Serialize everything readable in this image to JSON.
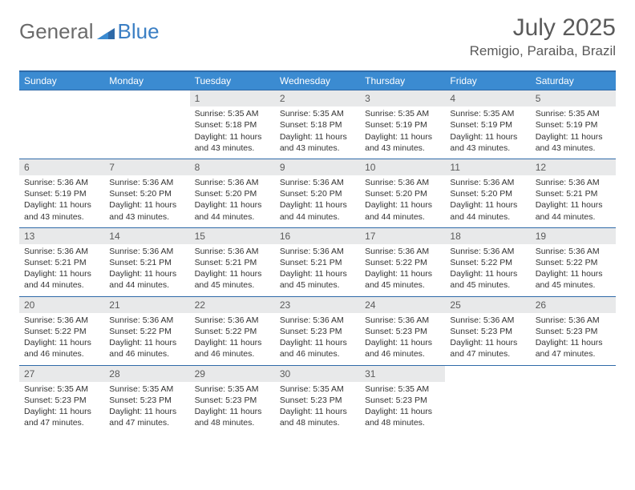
{
  "logo": {
    "text1": "General",
    "text2": "Blue"
  },
  "title": "July 2025",
  "location": "Remigio, Paraiba, Brazil",
  "weekdays": [
    "Sunday",
    "Monday",
    "Tuesday",
    "Wednesday",
    "Thursday",
    "Friday",
    "Saturday"
  ],
  "colors": {
    "header_bar": "#3b8bd1",
    "rule": "#2f6aa8",
    "daynum_bg": "#e8e9ea",
    "text": "#333333",
    "muted": "#5a5a5a",
    "logo_blue": "#3b7fc4"
  },
  "weeks": [
    [
      {
        "num": "",
        "sunrise": "",
        "sunset": "",
        "daylight": ""
      },
      {
        "num": "",
        "sunrise": "",
        "sunset": "",
        "daylight": ""
      },
      {
        "num": "1",
        "sunrise": "Sunrise: 5:35 AM",
        "sunset": "Sunset: 5:18 PM",
        "daylight": "Daylight: 11 hours and 43 minutes."
      },
      {
        "num": "2",
        "sunrise": "Sunrise: 5:35 AM",
        "sunset": "Sunset: 5:18 PM",
        "daylight": "Daylight: 11 hours and 43 minutes."
      },
      {
        "num": "3",
        "sunrise": "Sunrise: 5:35 AM",
        "sunset": "Sunset: 5:19 PM",
        "daylight": "Daylight: 11 hours and 43 minutes."
      },
      {
        "num": "4",
        "sunrise": "Sunrise: 5:35 AM",
        "sunset": "Sunset: 5:19 PM",
        "daylight": "Daylight: 11 hours and 43 minutes."
      },
      {
        "num": "5",
        "sunrise": "Sunrise: 5:35 AM",
        "sunset": "Sunset: 5:19 PM",
        "daylight": "Daylight: 11 hours and 43 minutes."
      }
    ],
    [
      {
        "num": "6",
        "sunrise": "Sunrise: 5:36 AM",
        "sunset": "Sunset: 5:19 PM",
        "daylight": "Daylight: 11 hours and 43 minutes."
      },
      {
        "num": "7",
        "sunrise": "Sunrise: 5:36 AM",
        "sunset": "Sunset: 5:20 PM",
        "daylight": "Daylight: 11 hours and 43 minutes."
      },
      {
        "num": "8",
        "sunrise": "Sunrise: 5:36 AM",
        "sunset": "Sunset: 5:20 PM",
        "daylight": "Daylight: 11 hours and 44 minutes."
      },
      {
        "num": "9",
        "sunrise": "Sunrise: 5:36 AM",
        "sunset": "Sunset: 5:20 PM",
        "daylight": "Daylight: 11 hours and 44 minutes."
      },
      {
        "num": "10",
        "sunrise": "Sunrise: 5:36 AM",
        "sunset": "Sunset: 5:20 PM",
        "daylight": "Daylight: 11 hours and 44 minutes."
      },
      {
        "num": "11",
        "sunrise": "Sunrise: 5:36 AM",
        "sunset": "Sunset: 5:20 PM",
        "daylight": "Daylight: 11 hours and 44 minutes."
      },
      {
        "num": "12",
        "sunrise": "Sunrise: 5:36 AM",
        "sunset": "Sunset: 5:21 PM",
        "daylight": "Daylight: 11 hours and 44 minutes."
      }
    ],
    [
      {
        "num": "13",
        "sunrise": "Sunrise: 5:36 AM",
        "sunset": "Sunset: 5:21 PM",
        "daylight": "Daylight: 11 hours and 44 minutes."
      },
      {
        "num": "14",
        "sunrise": "Sunrise: 5:36 AM",
        "sunset": "Sunset: 5:21 PM",
        "daylight": "Daylight: 11 hours and 44 minutes."
      },
      {
        "num": "15",
        "sunrise": "Sunrise: 5:36 AM",
        "sunset": "Sunset: 5:21 PM",
        "daylight": "Daylight: 11 hours and 45 minutes."
      },
      {
        "num": "16",
        "sunrise": "Sunrise: 5:36 AM",
        "sunset": "Sunset: 5:21 PM",
        "daylight": "Daylight: 11 hours and 45 minutes."
      },
      {
        "num": "17",
        "sunrise": "Sunrise: 5:36 AM",
        "sunset": "Sunset: 5:22 PM",
        "daylight": "Daylight: 11 hours and 45 minutes."
      },
      {
        "num": "18",
        "sunrise": "Sunrise: 5:36 AM",
        "sunset": "Sunset: 5:22 PM",
        "daylight": "Daylight: 11 hours and 45 minutes."
      },
      {
        "num": "19",
        "sunrise": "Sunrise: 5:36 AM",
        "sunset": "Sunset: 5:22 PM",
        "daylight": "Daylight: 11 hours and 45 minutes."
      }
    ],
    [
      {
        "num": "20",
        "sunrise": "Sunrise: 5:36 AM",
        "sunset": "Sunset: 5:22 PM",
        "daylight": "Daylight: 11 hours and 46 minutes."
      },
      {
        "num": "21",
        "sunrise": "Sunrise: 5:36 AM",
        "sunset": "Sunset: 5:22 PM",
        "daylight": "Daylight: 11 hours and 46 minutes."
      },
      {
        "num": "22",
        "sunrise": "Sunrise: 5:36 AM",
        "sunset": "Sunset: 5:22 PM",
        "daylight": "Daylight: 11 hours and 46 minutes."
      },
      {
        "num": "23",
        "sunrise": "Sunrise: 5:36 AM",
        "sunset": "Sunset: 5:23 PM",
        "daylight": "Daylight: 11 hours and 46 minutes."
      },
      {
        "num": "24",
        "sunrise": "Sunrise: 5:36 AM",
        "sunset": "Sunset: 5:23 PM",
        "daylight": "Daylight: 11 hours and 46 minutes."
      },
      {
        "num": "25",
        "sunrise": "Sunrise: 5:36 AM",
        "sunset": "Sunset: 5:23 PM",
        "daylight": "Daylight: 11 hours and 47 minutes."
      },
      {
        "num": "26",
        "sunrise": "Sunrise: 5:36 AM",
        "sunset": "Sunset: 5:23 PM",
        "daylight": "Daylight: 11 hours and 47 minutes."
      }
    ],
    [
      {
        "num": "27",
        "sunrise": "Sunrise: 5:35 AM",
        "sunset": "Sunset: 5:23 PM",
        "daylight": "Daylight: 11 hours and 47 minutes."
      },
      {
        "num": "28",
        "sunrise": "Sunrise: 5:35 AM",
        "sunset": "Sunset: 5:23 PM",
        "daylight": "Daylight: 11 hours and 47 minutes."
      },
      {
        "num": "29",
        "sunrise": "Sunrise: 5:35 AM",
        "sunset": "Sunset: 5:23 PM",
        "daylight": "Daylight: 11 hours and 48 minutes."
      },
      {
        "num": "30",
        "sunrise": "Sunrise: 5:35 AM",
        "sunset": "Sunset: 5:23 PM",
        "daylight": "Daylight: 11 hours and 48 minutes."
      },
      {
        "num": "31",
        "sunrise": "Sunrise: 5:35 AM",
        "sunset": "Sunset: 5:23 PM",
        "daylight": "Daylight: 11 hours and 48 minutes."
      },
      {
        "num": "",
        "sunrise": "",
        "sunset": "",
        "daylight": ""
      },
      {
        "num": "",
        "sunrise": "",
        "sunset": "",
        "daylight": ""
      }
    ]
  ]
}
